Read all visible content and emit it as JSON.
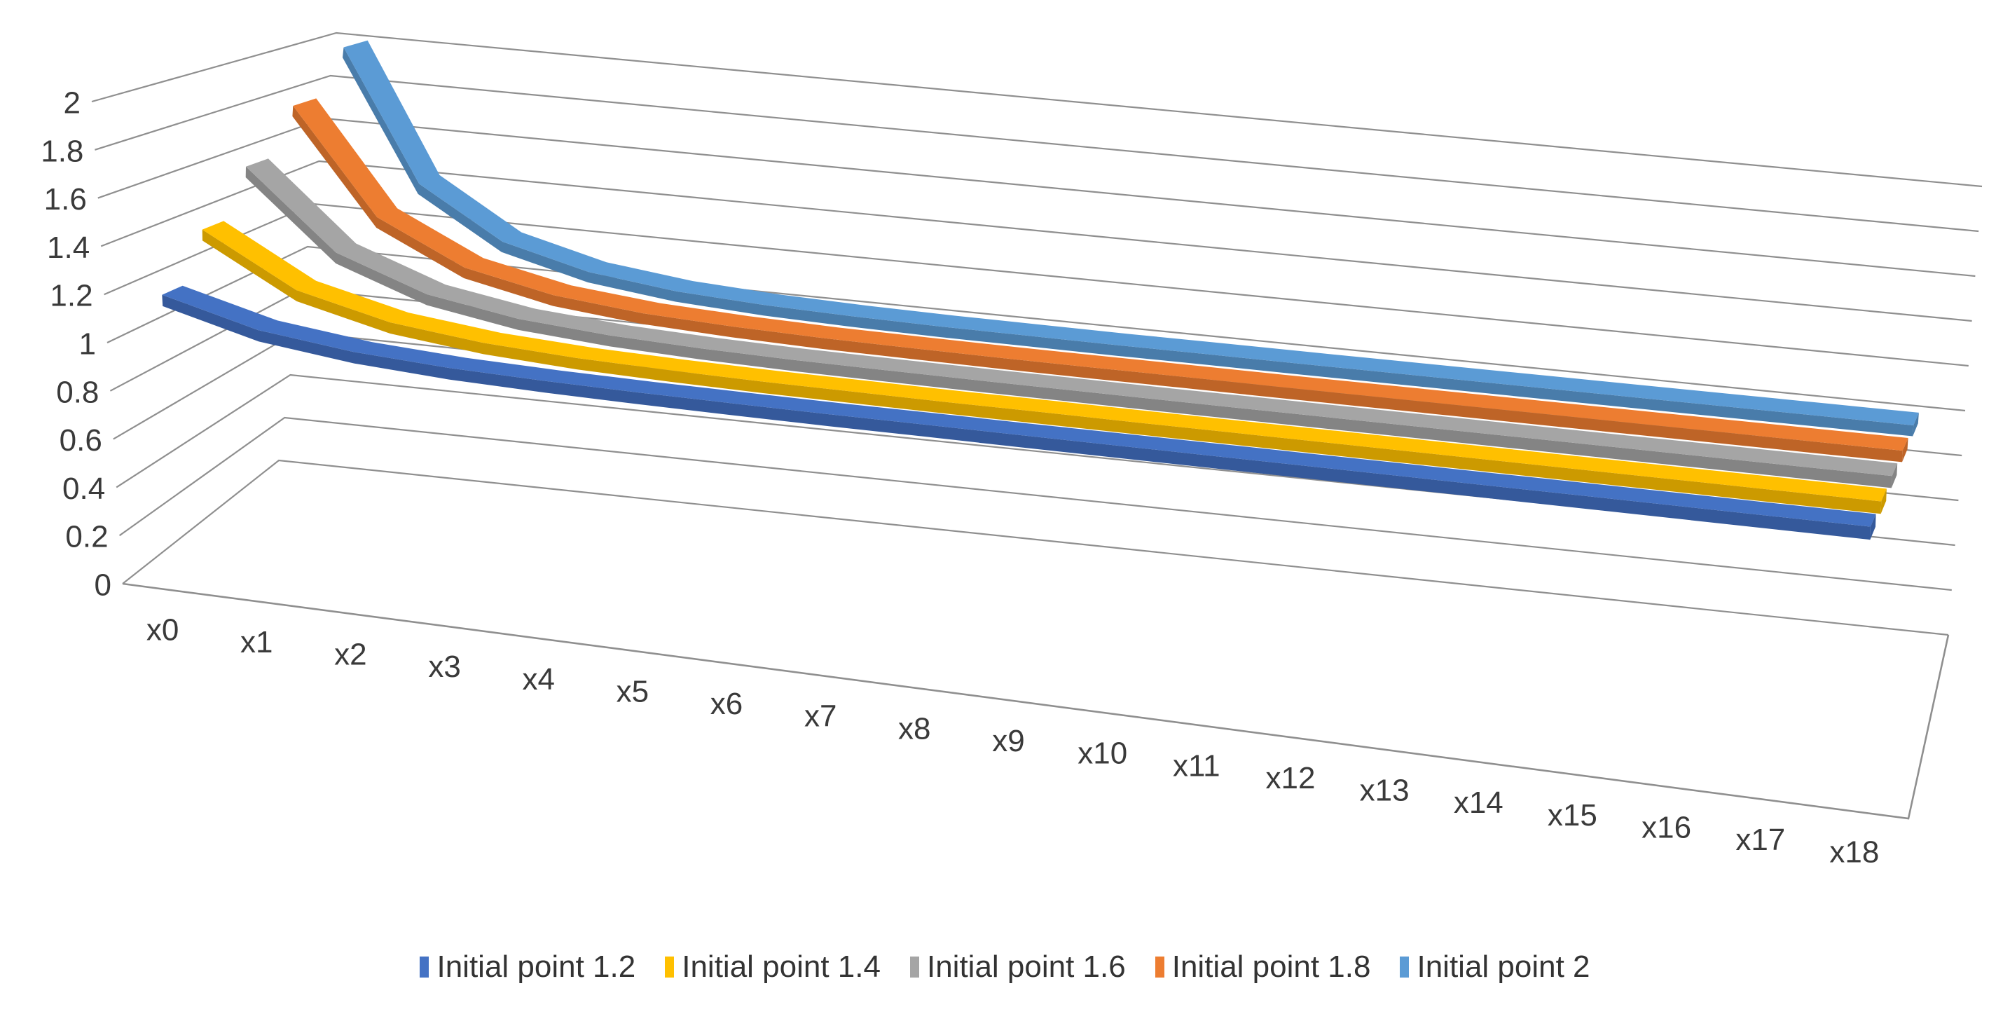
{
  "chart_data": {
    "type": "line3d",
    "title": "",
    "xlabel": "",
    "ylabel": "",
    "categories": [
      "x0",
      "x1",
      "x2",
      "x3",
      "x4",
      "x5",
      "x6",
      "x7",
      "x8",
      "x9",
      "x10",
      "x11",
      "x12",
      "x13",
      "x14",
      "x15",
      "x16",
      "x17",
      "x18"
    ],
    "y_ticks": [
      "0",
      "0.2",
      "0.4",
      "0.6",
      "0.8",
      "1",
      "1.2",
      "1.4",
      "1.6",
      "1.8",
      "2"
    ],
    "ylim": [
      0,
      2
    ],
    "grid": true,
    "legend_position": "bottom",
    "series": [
      {
        "name": "Initial point 1.2",
        "color": "#4472C4",
        "shade": "#35599B",
        "values": [
          1.2,
          1.095,
          1.047,
          1.023,
          1.012,
          1.006,
          1.003,
          1.001,
          1.001,
          1.0,
          1.0,
          1.0,
          1.0,
          1.0,
          1.0,
          1.0,
          1.0,
          1.0,
          1.0
        ]
      },
      {
        "name": "Initial point 1.4",
        "color": "#FFC000",
        "shade": "#CC9A00",
        "values": [
          1.4,
          1.183,
          1.088,
          1.043,
          1.021,
          1.011,
          1.005,
          1.003,
          1.001,
          1.001,
          1.0,
          1.0,
          1.0,
          1.0,
          1.0,
          1.0,
          1.0,
          1.0,
          1.0
        ]
      },
      {
        "name": "Initial point 1.6",
        "color": "#A5A5A5",
        "shade": "#848484",
        "values": [
          1.6,
          1.265,
          1.125,
          1.06,
          1.03,
          1.015,
          1.007,
          1.004,
          1.002,
          1.001,
          1.0,
          1.0,
          1.0,
          1.0,
          1.0,
          1.0,
          1.0,
          1.0,
          1.0
        ]
      },
      {
        "name": "Initial point 1.8",
        "color": "#ED7D31",
        "shade": "#BE6427",
        "values": [
          1.8,
          1.342,
          1.158,
          1.076,
          1.037,
          1.019,
          1.009,
          1.005,
          1.002,
          1.001,
          1.001,
          1.0,
          1.0,
          1.0,
          1.0,
          1.0,
          1.0,
          1.0,
          1.0
        ]
      },
      {
        "name": "Initial point 2",
        "color": "#5B9BD5",
        "shade": "#497CAA",
        "values": [
          2.0,
          1.414,
          1.189,
          1.091,
          1.044,
          1.022,
          1.011,
          1.005,
          1.003,
          1.001,
          1.001,
          1.0,
          1.0,
          1.0,
          1.0,
          1.0,
          1.0,
          1.0,
          1.0
        ]
      }
    ]
  },
  "colors": {
    "grid": "#8f8f8f",
    "axis_text": "#3a3a3a",
    "legend_text": "#333333",
    "background": "#ffffff"
  }
}
